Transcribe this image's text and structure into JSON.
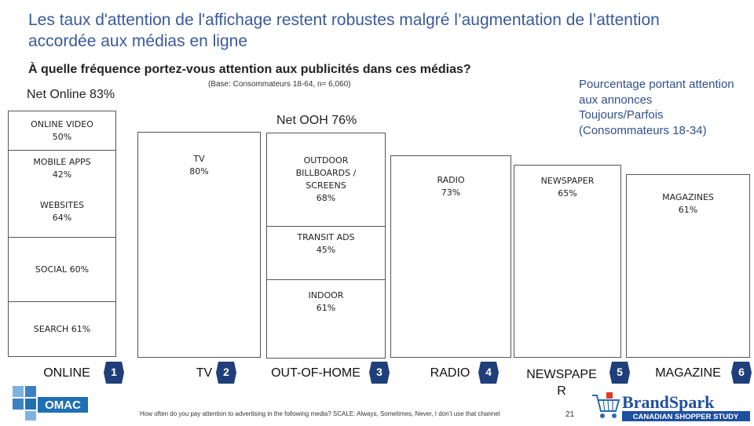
{
  "title": "Les taux d'attention de l'affichage restent robustes malgré l’augmentation de l’attention accordée aux médias en ligne",
  "question": "À quelle fréquence portez-vous attention aux publicités dans ces médias?",
  "base": "(Base: Consommateurs 18-64, n= 6,060)",
  "net_online": "Net Online 83%",
  "net_ooh": "Net OOH 76%",
  "legend_note": "Pourcentage portant attention aux annonces Toujours/Parfois (Consommateurs 18-34)",
  "footnote": "How often do you pay attention to advertising in the following media? SCALE: Always, Sometimes, Never, I don’t use that channel",
  "page_number": "21",
  "colors": {
    "title": "#3a5a9a",
    "accent": "#2f4f8f",
    "rank_badge": "#1f3f7a",
    "omac_blue": "#1f6fb5",
    "brandspark_blue": "#1f4f9f"
  },
  "chart_data": {
    "type": "table",
    "value_unit": "%",
    "columns": [
      {
        "name": "ONLINE",
        "rank": "1",
        "net": "Net Online 83%",
        "items": [
          {
            "label": "ONLINE VIDEO",
            "value_text": "50%",
            "value": 50
          },
          {
            "label": "MOBILE APPS",
            "value_text": "42%",
            "value": 42
          },
          {
            "label": "WEBSITES",
            "value_text": "64%",
            "value": 64
          },
          {
            "label": "SOCIAL",
            "value_text": "60%",
            "value": 60
          },
          {
            "label": "SEARCH",
            "value_text": "61%",
            "value": 61
          }
        ]
      },
      {
        "name": "TV",
        "rank": "2",
        "items": [
          {
            "label": "TV",
            "value_text": "80%",
            "value": 80
          }
        ]
      },
      {
        "name": "OUT-OF-HOME",
        "rank": "3",
        "net": "Net OOH 76%",
        "items": [
          {
            "label": "OUTDOOR BILLBOARDS / SCREENS",
            "value_text": "68%",
            "value": 68
          },
          {
            "label": "TRANSIT ADS",
            "value_text": "45%",
            "value": 45
          },
          {
            "label": "INDOOR",
            "value_text": "61%",
            "value": 61
          }
        ]
      },
      {
        "name": "RADIO",
        "rank": "4",
        "items": [
          {
            "label": "RADIO",
            "value_text": "73%",
            "value": 73
          }
        ]
      },
      {
        "name": "NEWSPAPER",
        "rank": "5",
        "items": [
          {
            "label": "NEWSPAPER",
            "value_text": "65%",
            "value": 65
          }
        ]
      },
      {
        "name": "MAGAZINE",
        "rank": "6",
        "items": [
          {
            "label": "MAGAZINES",
            "value_text": "61%",
            "value": 61
          }
        ]
      }
    ]
  },
  "labels": {
    "online_video": [
      "ONLINE VIDEO",
      "50%"
    ],
    "mobile_apps": [
      "MOBILE APPS",
      "42%"
    ],
    "websites": [
      "WEBSITES",
      "64%"
    ],
    "social": "SOCIAL 60%",
    "search": "SEARCH 61%",
    "tv": [
      "TV",
      "80%"
    ],
    "outdoor": [
      "OUTDOOR",
      "BILLBOARDS /",
      "SCREENS",
      "68%"
    ],
    "transit": [
      "TRANSIT ADS",
      "45%"
    ],
    "indoor": [
      "INDOOR",
      "61%"
    ],
    "radio": [
      "RADIO",
      "73%"
    ],
    "newspaper": [
      "NEWSPAPER",
      "65%"
    ],
    "magazines": [
      "MAGAZINES",
      "61%"
    ]
  },
  "column_names": {
    "online": "ONLINE",
    "tv": "TV",
    "ooh": "OUT-OF-HOME",
    "radio": "RADIO",
    "newspaper": "NEWSPAPER",
    "magazine": "MAGAZINE"
  },
  "column_name_lines": {
    "newspaper": [
      "NEWSPAPE",
      "R"
    ]
  },
  "ranks": [
    "1",
    "2",
    "3",
    "4",
    "5",
    "6"
  ],
  "logos": {
    "omac": "OMAC",
    "brandspark": "BrandSpark",
    "brandspark_sub": "CANADIAN SHOPPER STUDY"
  }
}
